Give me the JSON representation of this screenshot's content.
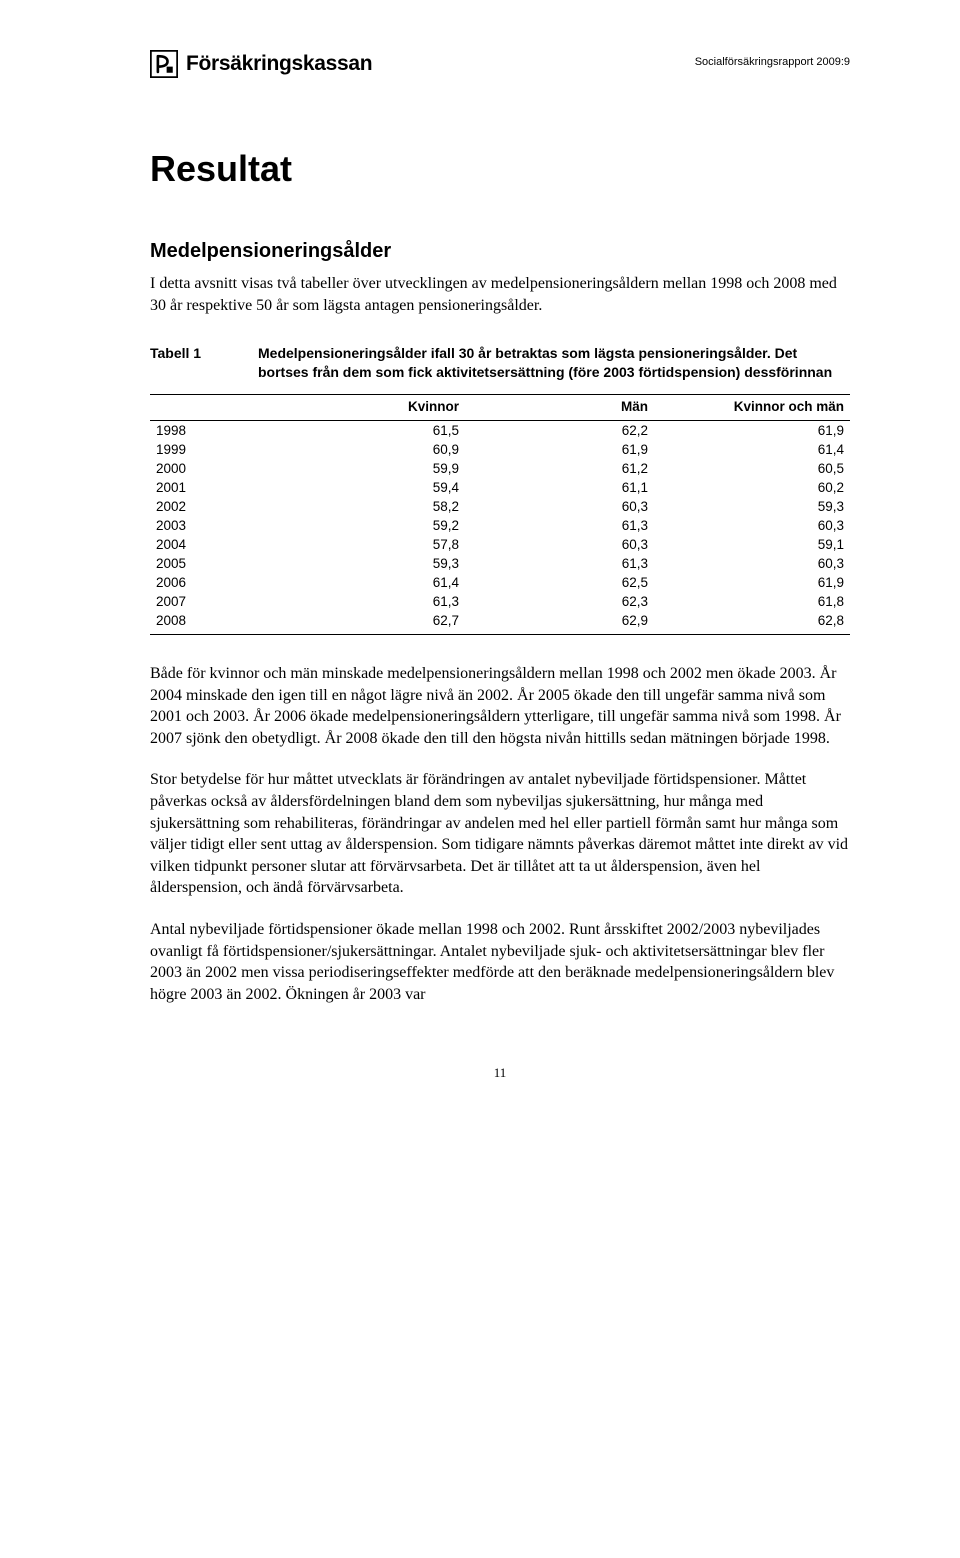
{
  "header": {
    "logo_text": "Försäkringskassan",
    "report_label": "Socialförsäkringsrapport 2009:9"
  },
  "title": "Resultat",
  "subsection": "Medelpensioneringsålder",
  "intro": "I detta avsnitt visas två tabeller över utvecklingen av medelpensionerings­åldern mellan 1998 och 2008 med 30 år respektive 50 år som lägsta antagen pensioneringsålder.",
  "table1": {
    "number": "Tabell 1",
    "caption": "Medelpensioneringsålder ifall 30 år betraktas som lägsta pensioneringsålder. Det bortses från dem som fick aktivitets­ersättning (före 2003 förtidspension) dessförinnan",
    "columns": [
      "",
      "Kvinnor",
      "Män",
      "Kvinnor och män"
    ],
    "rows": [
      [
        "1998",
        "61,5",
        "62,2",
        "61,9"
      ],
      [
        "1999",
        "60,9",
        "61,9",
        "61,4"
      ],
      [
        "2000",
        "59,9",
        "61,2",
        "60,5"
      ],
      [
        "2001",
        "59,4",
        "61,1",
        "60,2"
      ],
      [
        "2002",
        "58,2",
        "60,3",
        "59,3"
      ],
      [
        "2003",
        "59,2",
        "61,3",
        "60,3"
      ],
      [
        "2004",
        "57,8",
        "60,3",
        "59,1"
      ],
      [
        "2005",
        "59,3",
        "61,3",
        "60,3"
      ],
      [
        "2006",
        "61,4",
        "62,5",
        "61,9"
      ],
      [
        "2007",
        "61,3",
        "62,3",
        "61,8"
      ],
      [
        "2008",
        "62,7",
        "62,9",
        "62,8"
      ]
    ],
    "col_widths": [
      "18%",
      "27%",
      "27%",
      "28%"
    ]
  },
  "paragraphs": [
    "Både för kvinnor och män minskade medelpensioneringsåldern mellan 1998 och 2002 men ökade 2003. År 2004 minskade den igen till en något lägre nivå än 2002. År 2005 ökade den till ungefär samma nivå som 2001 och 2003. År 2006 ökade medelpensioneringsåldern ytterligare, till ungefär samma nivå som 1998. År 2007 sjönk den obetydligt. År 2008 ökade den till den högsta nivån hittills sedan mätningen började 1998.",
    "Stor betydelse för hur måttet utvecklats är förändringen av antalet nybeviljade förtidspensioner. Måttet påverkas också av åldersfördelningen bland dem som nybeviljas sjukersättning, hur många med sjukersättning som rehabiliteras, förändringar av andelen med hel eller partiell förmån samt hur många som väljer tidigt eller sent uttag av ålderspension. Som tidigare nämnts påverkas däremot måttet inte direkt av vid vilken tidpunkt personer slutar att förvärvsarbeta. Det är tillåtet att ta ut ålderspension, även hel ålderspension, och ändå förvärvsarbeta.",
    "Antal nybeviljade förtidspensioner ökade mellan 1998 och 2002. Runt årsskiftet 2002/2003 nybeviljades ovanligt få förtidspensioner/sjuk­ersättningar. Antalet nybeviljade sjuk- och aktivitetsersättningar blev fler 2003 än 2002 men vissa periodiseringseffekter medförde att den beräknade medelpensioneringsåldern blev högre 2003 än 2002. Ökningen år 2003 var"
  ],
  "page_number": "11",
  "colors": {
    "text": "#000000",
    "background": "#ffffff",
    "border": "#000000"
  }
}
